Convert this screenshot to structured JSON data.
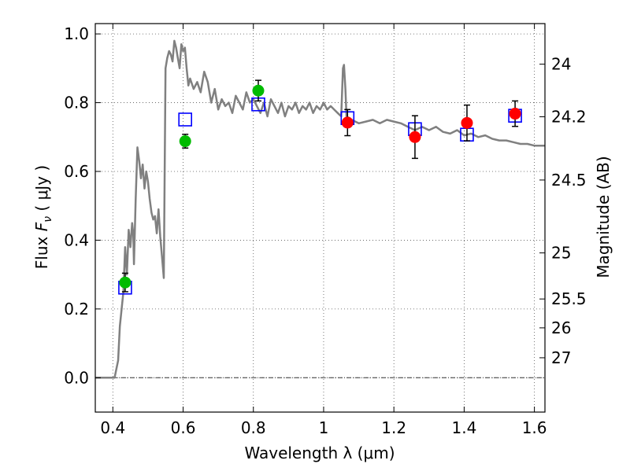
{
  "chart_data": {
    "type": "line",
    "xlabel": "Wavelength  λ (μm)",
    "ylabel_text": "Flux ",
    "ylabel_symbol": "F",
    "ylabel_subscript": "ν",
    "ylabel_units": " ( μJy )",
    "y2label": "Magnitude (AB)",
    "xlim": [
      0.35,
      1.63
    ],
    "ylim": [
      -0.1,
      1.03
    ],
    "grid": true,
    "x_ticks": [
      0.4,
      0.6,
      0.8,
      1.0,
      1.2,
      1.4,
      1.6
    ],
    "x_tick_labels": [
      "0.4",
      "0.6",
      "0.8",
      "1",
      "1.2",
      "1.4",
      "1.6"
    ],
    "y_ticks": [
      0.0,
      0.2,
      0.4,
      0.6,
      0.8,
      1.0
    ],
    "y_tick_labels": [
      "0.0",
      "0.2",
      "0.4",
      "0.6",
      "0.8",
      "1.0"
    ],
    "y2_ticks": [
      {
        "label": "24",
        "flux": 0.912
      },
      {
        "label": "24.2",
        "flux": 0.759
      },
      {
        "label": "24.5",
        "flux": 0.575
      },
      {
        "label": "25",
        "flux": 0.363
      },
      {
        "label": "25.5",
        "flux": 0.229
      },
      {
        "label": "26",
        "flux": 0.145
      },
      {
        "label": "27",
        "flux": 0.058
      }
    ],
    "colors": {
      "model_line": "#808080",
      "green_points": "#00bb00",
      "red_points": "#ff0000",
      "model_band_squares": "#0000ff",
      "error_bars": "#000000"
    },
    "model_sed": {
      "x": [
        0.35,
        0.405,
        0.415,
        0.42,
        0.43,
        0.435,
        0.44,
        0.445,
        0.45,
        0.455,
        0.458,
        0.46,
        0.465,
        0.47,
        0.475,
        0.48,
        0.485,
        0.49,
        0.495,
        0.5,
        0.505,
        0.51,
        0.515,
        0.52,
        0.525,
        0.53,
        0.535,
        0.54,
        0.545,
        0.55,
        0.555,
        0.56,
        0.565,
        0.57,
        0.575,
        0.58,
        0.585,
        0.59,
        0.595,
        0.6,
        0.605,
        0.61,
        0.615,
        0.62,
        0.63,
        0.64,
        0.65,
        0.66,
        0.67,
        0.68,
        0.69,
        0.7,
        0.71,
        0.72,
        0.73,
        0.74,
        0.75,
        0.76,
        0.77,
        0.78,
        0.79,
        0.8,
        0.81,
        0.82,
        0.83,
        0.84,
        0.85,
        0.86,
        0.87,
        0.88,
        0.89,
        0.9,
        0.91,
        0.92,
        0.93,
        0.94,
        0.95,
        0.96,
        0.97,
        0.98,
        0.99,
        1.0,
        1.01,
        1.02,
        1.03,
        1.04,
        1.05,
        1.055,
        1.058,
        1.062,
        1.065,
        1.08,
        1.1,
        1.12,
        1.14,
        1.16,
        1.18,
        1.2,
        1.22,
        1.24,
        1.26,
        1.28,
        1.3,
        1.32,
        1.34,
        1.36,
        1.38,
        1.4,
        1.42,
        1.44,
        1.46,
        1.48,
        1.5,
        1.52,
        1.54,
        1.56,
        1.58,
        1.6,
        1.63
      ],
      "y": [
        0.0,
        0.0,
        0.05,
        0.15,
        0.25,
        0.38,
        0.3,
        0.43,
        0.38,
        0.45,
        0.42,
        0.33,
        0.52,
        0.67,
        0.63,
        0.58,
        0.62,
        0.55,
        0.6,
        0.57,
        0.52,
        0.48,
        0.46,
        0.47,
        0.42,
        0.49,
        0.41,
        0.35,
        0.29,
        0.9,
        0.93,
        0.95,
        0.94,
        0.92,
        0.98,
        0.96,
        0.93,
        0.9,
        0.97,
        0.95,
        0.96,
        0.9,
        0.85,
        0.87,
        0.84,
        0.86,
        0.83,
        0.89,
        0.86,
        0.8,
        0.84,
        0.78,
        0.81,
        0.79,
        0.8,
        0.77,
        0.82,
        0.8,
        0.78,
        0.83,
        0.8,
        0.81,
        0.79,
        0.77,
        0.8,
        0.76,
        0.81,
        0.79,
        0.77,
        0.8,
        0.76,
        0.79,
        0.78,
        0.8,
        0.77,
        0.79,
        0.78,
        0.8,
        0.77,
        0.79,
        0.78,
        0.8,
        0.78,
        0.79,
        0.78,
        0.77,
        0.76,
        0.9,
        0.91,
        0.84,
        0.76,
        0.75,
        0.74,
        0.745,
        0.75,
        0.74,
        0.75,
        0.745,
        0.74,
        0.73,
        0.72,
        0.73,
        0.72,
        0.73,
        0.715,
        0.71,
        0.72,
        0.705,
        0.71,
        0.7,
        0.705,
        0.695,
        0.69,
        0.69,
        0.685,
        0.68,
        0.68,
        0.675,
        0.675
      ]
    },
    "observed_green": [
      {
        "x": 0.435,
        "y": 0.277,
        "err": 0.027
      },
      {
        "x": 0.606,
        "y": 0.688,
        "err": 0.02
      },
      {
        "x": 0.814,
        "y": 0.835,
        "err": 0.03
      }
    ],
    "observed_red": [
      {
        "x": 1.068,
        "y": 0.742,
        "err": 0.038
      },
      {
        "x": 1.26,
        "y": 0.7,
        "err": 0.062
      },
      {
        "x": 1.408,
        "y": 0.741,
        "err": 0.052
      },
      {
        "x": 1.545,
        "y": 0.768,
        "err": 0.037
      }
    ],
    "model_band": [
      {
        "x": 0.435,
        "y": 0.262
      },
      {
        "x": 0.606,
        "y": 0.751
      },
      {
        "x": 0.814,
        "y": 0.795
      },
      {
        "x": 1.068,
        "y": 0.755
      },
      {
        "x": 1.26,
        "y": 0.723
      },
      {
        "x": 1.408,
        "y": 0.707
      },
      {
        "x": 1.545,
        "y": 0.762
      }
    ]
  }
}
